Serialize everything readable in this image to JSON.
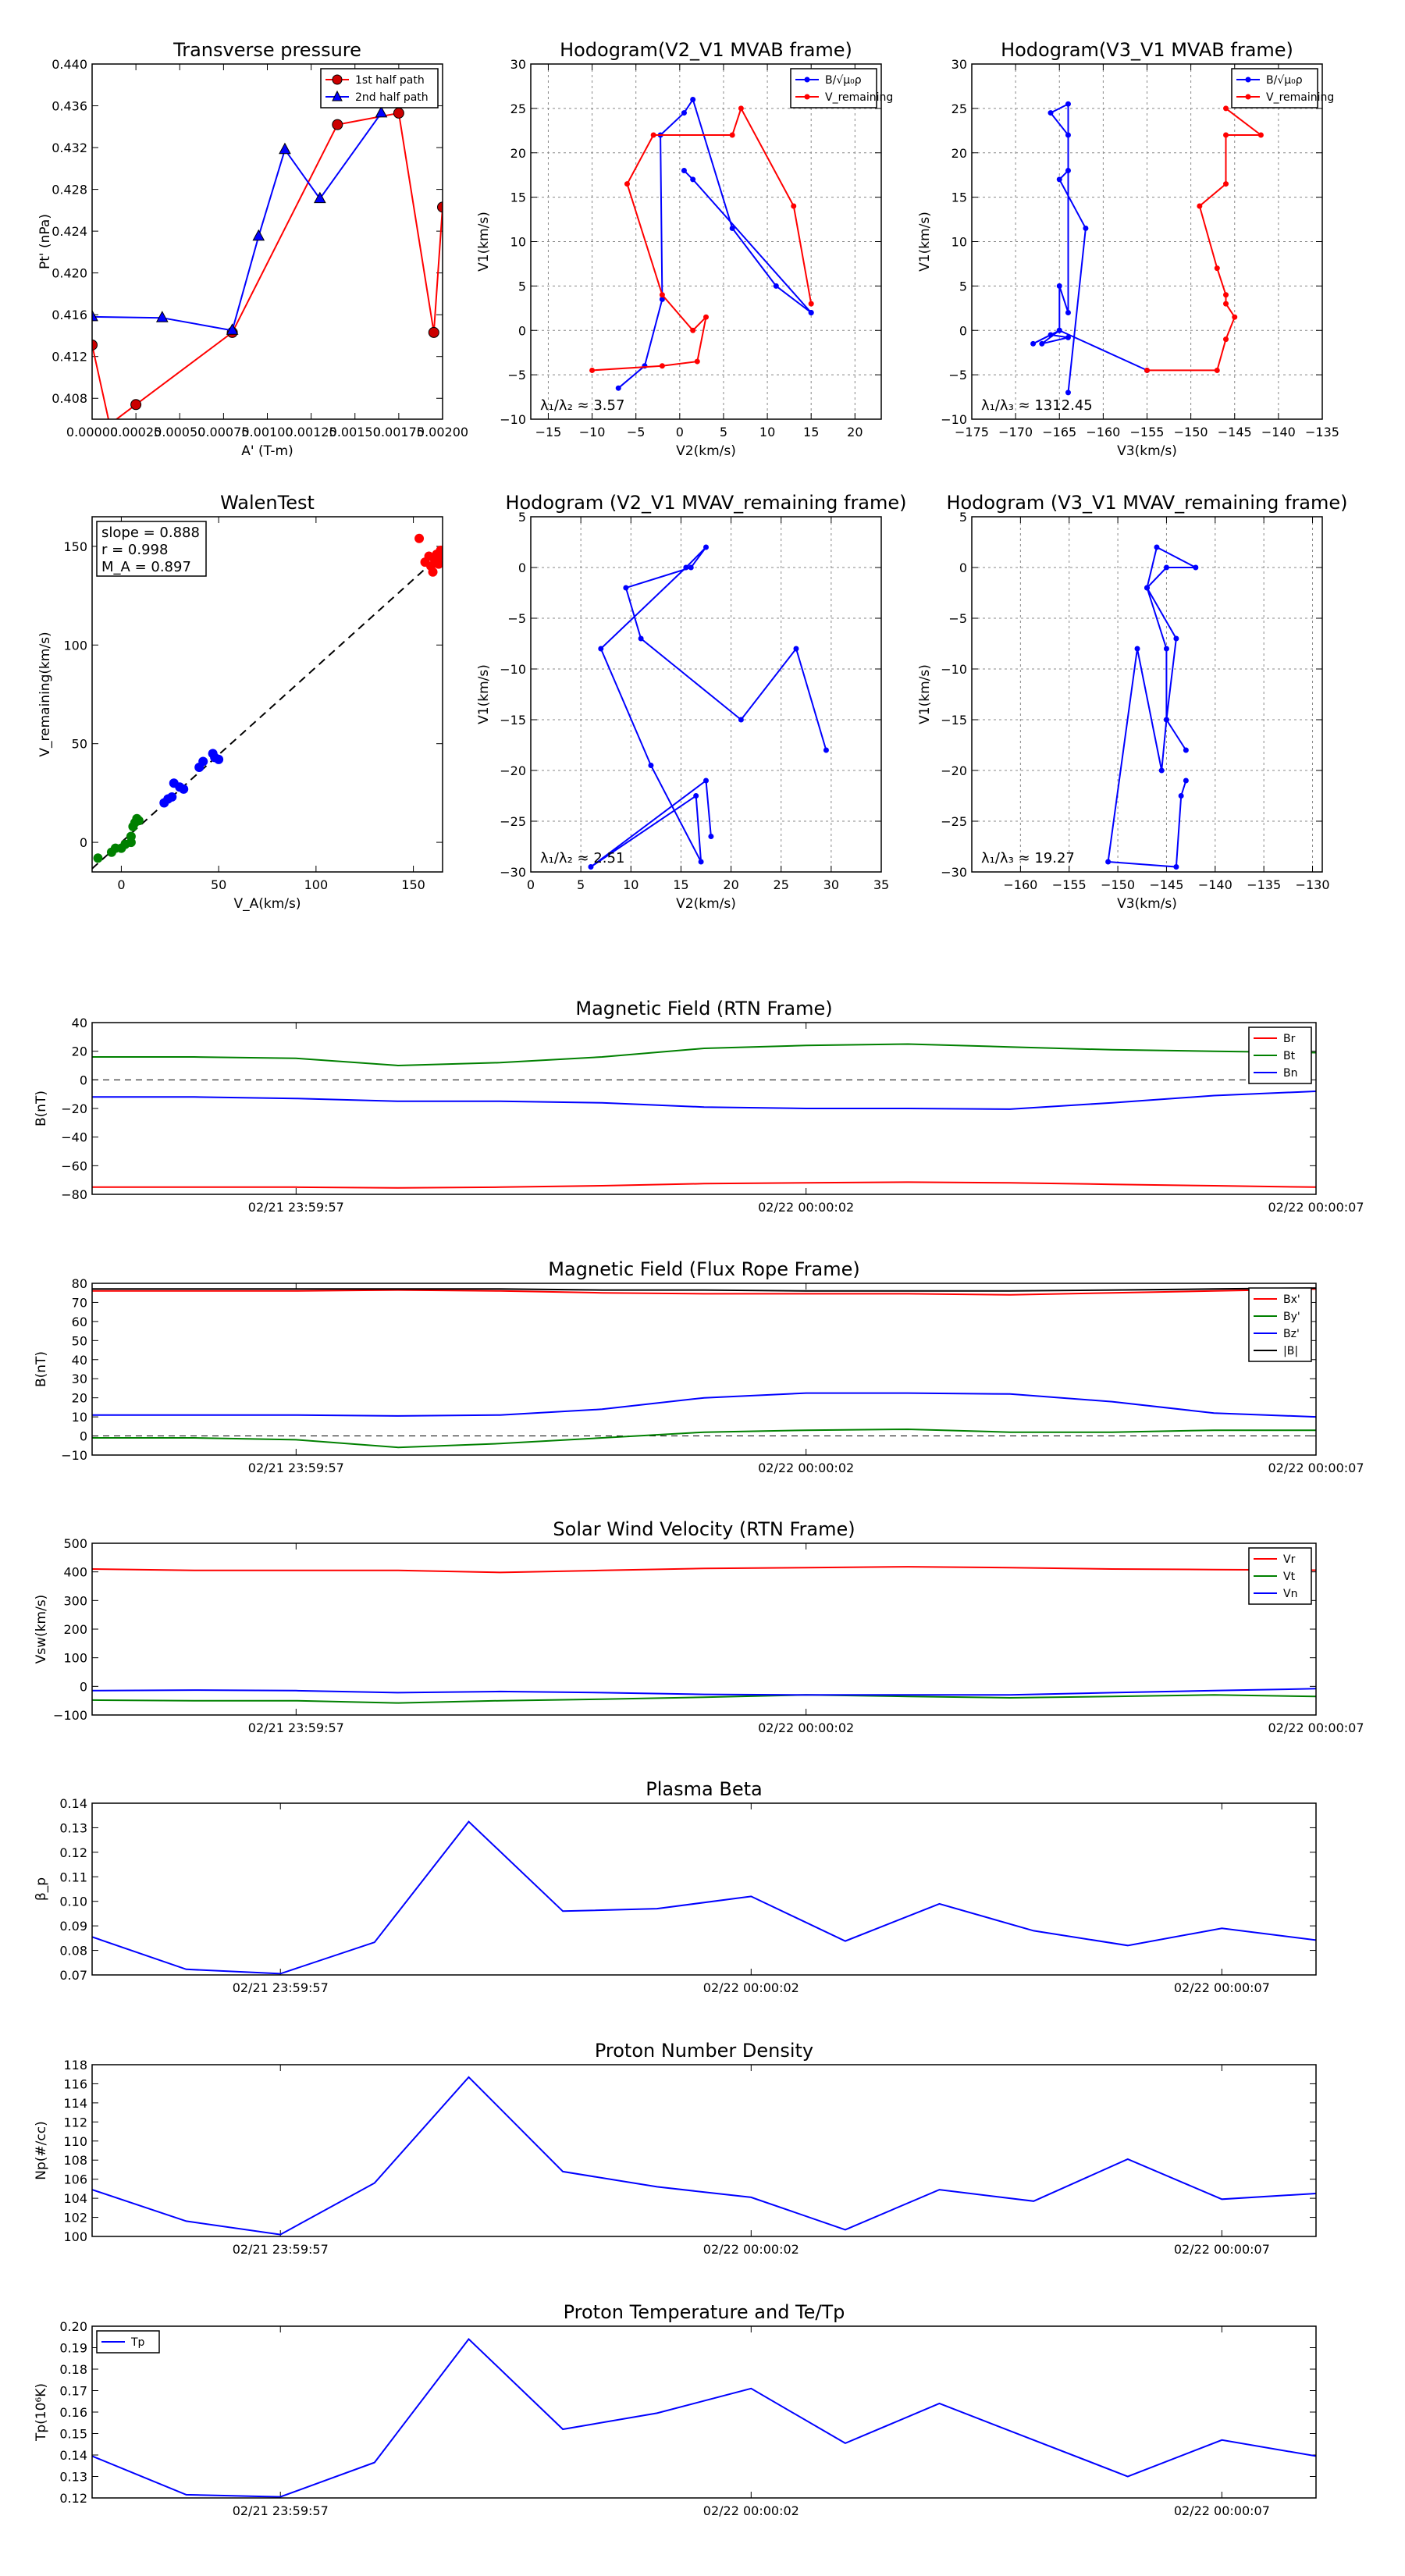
{
  "colors": {
    "red": "#ff0000",
    "darkred": "#cc0000",
    "blue": "#0000ff",
    "green": "#008000",
    "black": "#000000",
    "grid": "#888888",
    "text": "#000000"
  },
  "time_ticks": [
    "02/21 23:59:57",
    "02/22 00:00:02",
    "02/22 00:00:07"
  ],
  "chart_data": [
    {
      "id": "transverse-pressure",
      "type": "line",
      "title": "Transverse pressure",
      "xlabel": "A' (T-m)",
      "ylabel": "Pt' (nPa)",
      "xlim": [
        0,
        0.002
      ],
      "ylim": [
        0.406,
        0.44
      ],
      "xticks": [
        0,
        0.00025,
        0.0005,
        0.00075,
        0.001,
        0.00125,
        0.0015,
        0.00175,
        0.002
      ],
      "xtick_labels": [
        "0.00000",
        "0.00025",
        "0.00050",
        "0.00075",
        "0.00100",
        "0.00125",
        "0.00150",
        "0.00175",
        "0.00200"
      ],
      "yticks": [
        0.408,
        0.412,
        0.416,
        0.42,
        0.424,
        0.428,
        0.432,
        0.436,
        0.44
      ],
      "ytick_labels": [
        "0.408",
        "0.412",
        "0.416",
        "0.420",
        "0.424",
        "0.428",
        "0.432",
        "0.436",
        "0.440"
      ],
      "legend": "top-right",
      "series": [
        {
          "name": "1st half path",
          "color": "red",
          "marker": "circle",
          "x": [
            0,
            0.0001,
            0.00025,
            0.0008,
            0.0014,
            0.00175,
            0.00195,
            0.002
          ],
          "y": [
            0.4131,
            0.4055,
            0.4074,
            0.4143,
            0.4342,
            0.4353,
            0.4143,
            0.4263
          ]
        },
        {
          "name": "2nd half path",
          "color": "blue",
          "marker": "triangle",
          "x": [
            0,
            0.0004,
            0.0008,
            0.00095,
            0.0011,
            0.0013,
            0.00165
          ],
          "y": [
            0.4158,
            0.4157,
            0.4145,
            0.4235,
            0.4318,
            0.4271,
            0.4353
          ]
        }
      ]
    },
    {
      "id": "hodogram-v2-v1-mvab",
      "type": "line",
      "title": "Hodogram(V2_V1 MVAB frame)",
      "xlabel": "V2(km/s)",
      "ylabel": "V1(km/s)",
      "xlim": [
        -17,
        23
      ],
      "ylim": [
        -10,
        30
      ],
      "xticks": [
        -15,
        -10,
        -5,
        0,
        5,
        10,
        15,
        20
      ],
      "xtick_labels": [
        "−15",
        "−10",
        "−5",
        "0",
        "5",
        "10",
        "15",
        "20"
      ],
      "yticks": [
        -10,
        -5,
        0,
        5,
        10,
        15,
        20,
        25,
        30
      ],
      "ytick_labels": [
        "−10",
        "−5",
        "0",
        "5",
        "10",
        "15",
        "20",
        "25",
        "30"
      ],
      "grid": true,
      "legend": "top-right",
      "annotation": "λ₁/λ₂ ≈ 3.57",
      "series": [
        {
          "name": "B/√μ₀ρ",
          "color": "blue",
          "x": [
            -7,
            -4,
            -2,
            -2.2,
            0.5,
            1.5,
            6,
            11,
            15,
            15,
            1.5,
            0.5
          ],
          "y": [
            -6.5,
            -4,
            3.5,
            22,
            24.5,
            26,
            11.5,
            5,
            2,
            2,
            17,
            18
          ]
        },
        {
          "name": "V_remaining",
          "color": "red",
          "x": [
            -10,
            -2,
            2,
            3,
            1.5,
            -2,
            -6,
            -3,
            6,
            7,
            13,
            15
          ],
          "y": [
            -4.5,
            -4,
            -3.5,
            1.5,
            0,
            4,
            16.5,
            22,
            22,
            25,
            14,
            3
          ]
        }
      ]
    },
    {
      "id": "hodogram-v3-v1-mvab",
      "type": "line",
      "title": "Hodogram(V3_V1 MVAB frame)",
      "xlabel": "V3(km/s)",
      "ylabel": "V1(km/s)",
      "xlim": [
        -175,
        -135
      ],
      "ylim": [
        -10,
        30
      ],
      "xticks": [
        -175,
        -170,
        -165,
        -160,
        -155,
        -150,
        -145,
        -140,
        -135
      ],
      "xtick_labels": [
        "−175",
        "−170",
        "−165",
        "−160",
        "−155",
        "−150",
        "−145",
        "−140",
        "−135"
      ],
      "yticks": [
        -10,
        -5,
        0,
        5,
        10,
        15,
        20,
        25,
        30
      ],
      "ytick_labels": [
        "−10",
        "−5",
        "0",
        "5",
        "10",
        "15",
        "20",
        "25",
        "30"
      ],
      "grid": true,
      "legend": "top-right",
      "annotation": "λ₁/λ₃ ≈ 1312.45",
      "series": [
        {
          "name": "B/√μ₀ρ",
          "color": "blue",
          "x": [
            -164,
            -162,
            -165,
            -164,
            -164,
            -166,
            -164,
            -164,
            -165,
            -165,
            -167,
            -164,
            -166,
            -168,
            -165,
            -155
          ],
          "y": [
            -7,
            11.5,
            17,
            18,
            22,
            24.5,
            25.5,
            2,
            5,
            0,
            -1.5,
            -0.8,
            -0.5,
            -1.5,
            0,
            -4.5
          ]
        },
        {
          "name": "V_remaining",
          "color": "red",
          "x": [
            -155,
            -147,
            -146,
            -145,
            -146,
            -146,
            -147,
            -149,
            -146,
            -146,
            -142,
            -146
          ],
          "y": [
            -4.5,
            -4.5,
            -1,
            1.5,
            3,
            4,
            7,
            14,
            16.5,
            22,
            22,
            25
          ]
        }
      ]
    },
    {
      "id": "walen-test",
      "type": "scatter",
      "title": "WalenTest",
      "xlabel": "V_A(km/s)",
      "ylabel": "V_remaining(km/s)",
      "xlim": [
        -15,
        165
      ],
      "ylim": [
        -15,
        165
      ],
      "xticks": [
        0,
        50,
        100,
        150
      ],
      "xtick_labels": [
        "0",
        "50",
        "100",
        "150"
      ],
      "yticks": [
        0,
        50,
        100,
        150
      ],
      "ytick_labels": [
        "0",
        "50",
        "100",
        "150"
      ],
      "stats": [
        "slope = 0.888",
        "r = 0.998",
        "M_A = 0.897"
      ],
      "fit": {
        "slope": 0.888,
        "x0": -15,
        "x1": 165
      },
      "series": [
        {
          "color": "green",
          "x": [
            -12,
            -5,
            -3,
            0,
            2,
            5,
            5,
            6,
            7,
            8,
            9
          ],
          "y": [
            -8,
            -5,
            -3,
            -3,
            -1,
            0,
            3,
            8,
            10,
            12,
            11
          ]
        },
        {
          "color": "blue",
          "x": [
            22,
            24,
            26,
            27,
            30,
            32,
            40,
            42,
            47,
            48,
            50
          ],
          "y": [
            20,
            22,
            23,
            30,
            28,
            27,
            38,
            41,
            45,
            43,
            42
          ]
        },
        {
          "color": "red",
          "x": [
            153,
            156,
            158,
            159,
            160,
            161,
            162,
            163,
            164,
            164
          ],
          "y": [
            154,
            142,
            145,
            140,
            137,
            143,
            146,
            141,
            145,
            148
          ]
        }
      ]
    },
    {
      "id": "hodogram-v2-v1-mvav",
      "type": "line",
      "title": "Hodogram (V2_V1 MVAV_remaining frame)",
      "xlabel": "V2(km/s)",
      "ylabel": "V1(km/s)",
      "xlim": [
        0,
        35
      ],
      "ylim": [
        -30,
        5
      ],
      "xticks": [
        0,
        5,
        10,
        15,
        20,
        25,
        30,
        35
      ],
      "xtick_labels": [
        "0",
        "5",
        "10",
        "15",
        "20",
        "25",
        "30",
        "35"
      ],
      "yticks": [
        -30,
        -25,
        -20,
        -15,
        -10,
        -5,
        0,
        5
      ],
      "ytick_labels": [
        "−30",
        "−25",
        "−20",
        "−15",
        "−10",
        "−5",
        "0",
        "5"
      ],
      "grid": true,
      "annotation": "λ₁/λ₂ ≈ 2.51",
      "series": [
        {
          "color": "blue",
          "x": [
            29.5,
            26.5,
            21,
            11,
            9.5,
            16,
            17.5,
            15.5,
            7,
            12,
            17,
            16.5,
            6,
            17.5,
            18
          ],
          "y": [
            -18,
            -8,
            -15,
            -7,
            -2,
            0,
            2,
            0,
            -8,
            -19.5,
            -29,
            -22.5,
            -29.5,
            -21,
            -26.5
          ]
        }
      ]
    },
    {
      "id": "hodogram-v3-v1-mvav",
      "type": "line",
      "title": "Hodogram (V3_V1 MVAV_remaining frame)",
      "xlabel": "V3(km/s)",
      "ylabel": "V1(km/s)",
      "xlim": [
        -165,
        -129
      ],
      "ylim": [
        -30,
        5
      ],
      "xticks": [
        -160,
        -155,
        -150,
        -145,
        -140,
        -135,
        -130
      ],
      "xtick_labels": [
        "−160",
        "−155",
        "−150",
        "−145",
        "−140",
        "−135",
        "−130"
      ],
      "yticks": [
        -30,
        -25,
        -20,
        -15,
        -10,
        -5,
        0,
        5
      ],
      "ytick_labels": [
        "−30",
        "−25",
        "−20",
        "−15",
        "−10",
        "−5",
        "0",
        "5"
      ],
      "grid": true,
      "annotation": "λ₁/λ₃ ≈ 19.27",
      "series": [
        {
          "color": "blue",
          "x": [
            -143,
            -145,
            -145,
            -147,
            -145,
            -142,
            -146,
            -147,
            -144,
            -145,
            -145.5,
            -148,
            -151,
            -144,
            -143.5,
            -143
          ],
          "y": [
            -18,
            -15,
            -8,
            -2,
            0,
            0,
            2,
            -2,
            -7,
            -15,
            -20,
            -8,
            -29,
            -29.5,
            -22.5,
            -21
          ]
        }
      ]
    },
    {
      "id": "magnetic-field-rtn",
      "type": "line",
      "title": "Magnetic Field (RTN Frame)",
      "ylabel": "B(nT)",
      "ylim": [
        -80,
        40
      ],
      "yticks": [
        -80,
        -60,
        -40,
        -20,
        0,
        20,
        40
      ],
      "ytick_labels": [
        "−80",
        "−60",
        "−40",
        "−20",
        "0",
        "20",
        "40"
      ],
      "zero_line": true,
      "legend": "top-right",
      "series": [
        {
          "name": "Br",
          "color": "red",
          "values": [
            -75,
            -75,
            -75,
            -75.5,
            -75,
            -74,
            -72.5,
            -72,
            -71.5,
            -72,
            -73,
            -74,
            -75
          ]
        },
        {
          "name": "Bt",
          "color": "green",
          "values": [
            16,
            16,
            15,
            10,
            12,
            16,
            22,
            24,
            25,
            23,
            21,
            20,
            19
          ]
        },
        {
          "name": "Bn",
          "color": "blue",
          "values": [
            -12,
            -12,
            -13,
            -15,
            -15,
            -16,
            -19,
            -20,
            -20,
            -20.5,
            -16,
            -11,
            -8
          ]
        }
      ]
    },
    {
      "id": "magnetic-field-flux-rope",
      "type": "line",
      "title": "Magnetic Field (Flux Rope Frame)",
      "ylabel": "B(nT)",
      "ylim": [
        -10,
        80
      ],
      "yticks": [
        -10,
        0,
        10,
        20,
        30,
        40,
        50,
        60,
        70,
        80
      ],
      "ytick_labels": [
        "−10",
        "0",
        "10",
        "20",
        "30",
        "40",
        "50",
        "60",
        "70",
        "80"
      ],
      "zero_line": true,
      "legend": "top-right",
      "series": [
        {
          "name": "Bx'",
          "color": "red",
          "values": [
            76,
            76,
            76,
            76.5,
            76,
            75,
            74.5,
            74.5,
            74.5,
            74,
            75,
            76,
            77
          ]
        },
        {
          "name": "By'",
          "color": "green",
          "values": [
            -1,
            -1,
            -2,
            -6,
            -4,
            -1,
            2,
            3,
            3.5,
            2,
            2,
            3,
            3
          ]
        },
        {
          "name": "Bz'",
          "color": "blue",
          "values": [
            11,
            11,
            11,
            10.5,
            11,
            14,
            20,
            22.5,
            22.5,
            22,
            18,
            12,
            10
          ]
        },
        {
          "name": "|B|",
          "color": "black",
          "values": [
            77,
            77,
            77,
            77,
            77,
            76.5,
            76.5,
            76,
            76,
            76,
            76.5,
            77,
            77.5
          ]
        }
      ]
    },
    {
      "id": "solar-wind-velocity",
      "type": "line",
      "title": "Solar Wind Velocity (RTN Frame)",
      "ylabel": "Vsw(km/s)",
      "ylim": [
        -100,
        500
      ],
      "yticks": [
        -100,
        0,
        100,
        200,
        300,
        400,
        500
      ],
      "ytick_labels": [
        "−100",
        "0",
        "100",
        "200",
        "300",
        "400",
        "500"
      ],
      "legend": "top-right",
      "series": [
        {
          "name": "Vr",
          "color": "red",
          "values": [
            410,
            405,
            405,
            405,
            398,
            405,
            412,
            415,
            418,
            415,
            410,
            408,
            406
          ]
        },
        {
          "name": "Vt",
          "color": "green",
          "values": [
            -48,
            -50,
            -50,
            -58,
            -50,
            -45,
            -38,
            -30,
            -35,
            -40,
            -35,
            -30,
            -35
          ]
        },
        {
          "name": "Vn",
          "color": "blue",
          "values": [
            -15,
            -13,
            -15,
            -22,
            -18,
            -22,
            -28,
            -30,
            -30,
            -30,
            -22,
            -15,
            -8
          ]
        }
      ]
    },
    {
      "id": "plasma-beta",
      "type": "line",
      "title": "Plasma Beta",
      "ylabel": "β_p",
      "ylim": [
        0.07,
        0.14
      ],
      "yticks": [
        0.07,
        0.08,
        0.09,
        0.1,
        0.11,
        0.12,
        0.13,
        0.14
      ],
      "ytick_labels": [
        "0.07",
        "0.08",
        "0.09",
        "0.10",
        "0.11",
        "0.12",
        "0.13",
        "0.14"
      ],
      "series": [
        {
          "name": "beta",
          "color": "blue",
          "values": [
            0.0855,
            0.0723,
            0.0705,
            0.0833,
            0.1325,
            0.096,
            0.097,
            0.102,
            0.0838,
            0.099,
            0.088,
            0.082,
            0.089,
            0.0842
          ]
        }
      ]
    },
    {
      "id": "proton-number-density",
      "type": "line",
      "title": "Proton Number Density",
      "ylabel": "Np(#/cc)",
      "ylim": [
        100,
        118
      ],
      "yticks": [
        100,
        102,
        104,
        106,
        108,
        110,
        112,
        114,
        116,
        118
      ],
      "ytick_labels": [
        "100",
        "102",
        "104",
        "106",
        "108",
        "110",
        "112",
        "114",
        "116",
        "118"
      ],
      "series": [
        {
          "name": "Np",
          "color": "blue",
          "values": [
            104.9,
            101.6,
            100.2,
            105.6,
            116.7,
            106.8,
            105.2,
            104.1,
            100.7,
            104.9,
            103.7,
            108.1,
            103.9,
            104.5
          ]
        }
      ]
    },
    {
      "id": "proton-temperature",
      "type": "line",
      "title": "Proton Temperature and Te/Tp",
      "ylabel": "Tp(10⁶K)",
      "ylim": [
        0.12,
        0.2
      ],
      "yticks": [
        0.12,
        0.13,
        0.14,
        0.15,
        0.16,
        0.17,
        0.18,
        0.19,
        0.2
      ],
      "ytick_labels": [
        "0.12",
        "0.13",
        "0.14",
        "0.15",
        "0.16",
        "0.17",
        "0.18",
        "0.19",
        "0.20"
      ],
      "legend": "top-left",
      "series": [
        {
          "name": "Tp",
          "color": "blue",
          "values": [
            0.1395,
            0.1215,
            0.1205,
            0.1365,
            0.194,
            0.152,
            0.1595,
            0.171,
            0.1455,
            0.164,
            0.147,
            0.13,
            0.147,
            0.1395
          ]
        }
      ]
    }
  ]
}
